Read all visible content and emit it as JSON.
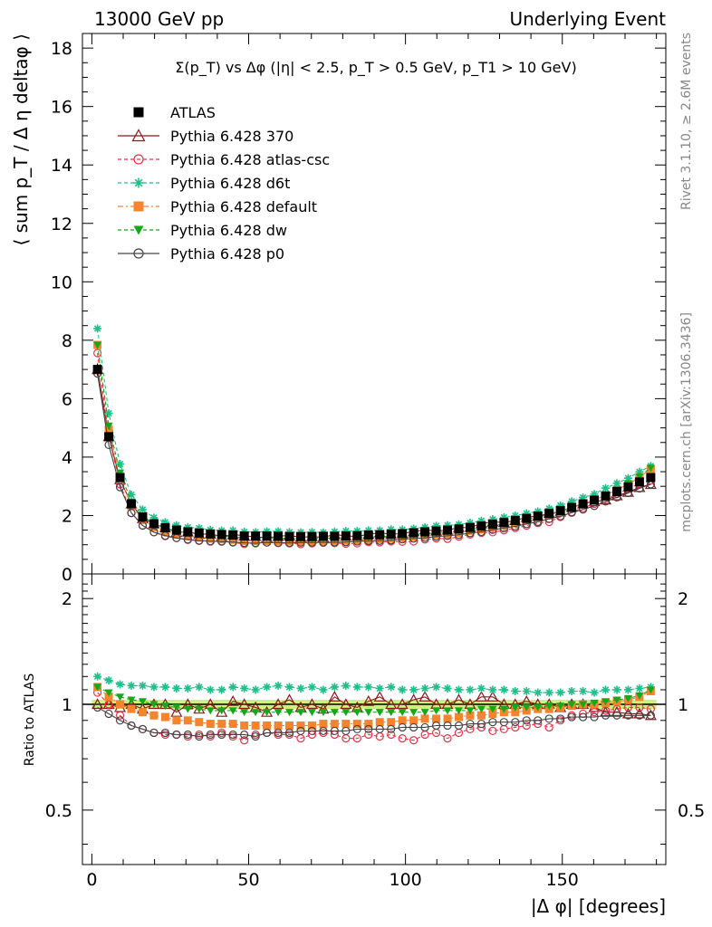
{
  "header": {
    "left": "13000 GeV pp",
    "right": "Underlying Event"
  },
  "side_labels": {
    "rivet": "Rivet 3.1.10, ≥ 2.6M events",
    "mcplots": "mcplots.cern.ch [arXiv:1306.3436]"
  },
  "chart_data": {
    "type": "scatter",
    "title": "Σ(p_T) vs Δφ (|η| < 2.5, p_T > 0.5 GeV, p_T1 > 10 GeV)",
    "xlabel": "|Δ φ| [degrees]",
    "ylabel": "⟨ sum p_T / Δ η deltaφ ⟩",
    "ratio_ylabel": "Ratio to ATLAS",
    "xlim": [
      -3,
      183
    ],
    "ylim": [
      0,
      18.5
    ],
    "ratio_ylim": [
      0.35,
      2.35
    ],
    "ratio_log": true,
    "x_ticks": [
      "0",
      "50",
      "100",
      "150"
    ],
    "y_ticks": [
      "0",
      "2",
      "4",
      "6",
      "8",
      "10",
      "12",
      "14",
      "16",
      "18"
    ],
    "ratio_ticks": [
      "0.5",
      "1",
      "2"
    ],
    "legend_position": "top-left",
    "data_points": {
      "name": "ATLAS",
      "x": [
        1.8,
        5.4,
        9,
        12.6,
        16.2,
        19.8,
        23.4,
        27,
        30.6,
        34.2,
        37.8,
        41.4,
        45,
        48.6,
        52.2,
        55.8,
        59.4,
        63,
        66.6,
        70.2,
        73.8,
        77.4,
        81,
        84.6,
        88.2,
        91.8,
        95.4,
        99,
        102.6,
        106.2,
        109.8,
        113.4,
        117,
        120.6,
        124.2,
        127.8,
        131.4,
        135,
        138.6,
        142.2,
        145.8,
        149.4,
        153,
        156.6,
        160.2,
        163.8,
        167.4,
        171,
        174.6,
        178.2
      ],
      "y": [
        7.0,
        4.7,
        3.3,
        2.4,
        1.95,
        1.72,
        1.58,
        1.5,
        1.44,
        1.4,
        1.37,
        1.35,
        1.33,
        1.3,
        1.3,
        1.3,
        1.29,
        1.28,
        1.28,
        1.28,
        1.29,
        1.29,
        1.3,
        1.31,
        1.33,
        1.34,
        1.36,
        1.38,
        1.41,
        1.44,
        1.47,
        1.5,
        1.54,
        1.59,
        1.64,
        1.7,
        1.76,
        1.83,
        1.9,
        1.98,
        2.07,
        2.17,
        2.28,
        2.4,
        2.53,
        2.67,
        2.82,
        2.98,
        3.15,
        3.3
      ]
    },
    "series": [
      {
        "name": "Pythia 6.428 370",
        "color": "#8b1a1a",
        "marker": "triangle-open",
        "line": "solid",
        "ratio": [
          1.0,
          1.0,
          0.98,
          1.0,
          0.97,
          1.0,
          1.0,
          0.95,
          1.0,
          0.97,
          1.0,
          0.95,
          1.02,
          1.0,
          0.98,
          0.95,
          1.0,
          1.03,
          0.98,
          1.0,
          0.97,
          1.05,
          1.0,
          0.98,
          1.02,
          1.05,
          1.0,
          1.0,
          1.03,
          1.05,
          1.0,
          1.0,
          1.03,
          1.0,
          1.05,
          1.05,
          1.0,
          1.0,
          1.02,
          1.0,
          1.0,
          0.98,
          1.0,
          1.0,
          0.98,
          0.95,
          0.95,
          0.94,
          0.94,
          0.93
        ]
      },
      {
        "name": "Pythia 6.428 atlas-csc",
        "color": "#e8334a",
        "marker": "circle-open",
        "line": "dashed",
        "ratio": [
          1.08,
          1.0,
          0.93,
          0.87,
          0.85,
          0.83,
          0.82,
          0.82,
          0.81,
          0.82,
          0.81,
          0.83,
          0.81,
          0.79,
          0.82,
          0.83,
          0.82,
          0.82,
          0.8,
          0.82,
          0.83,
          0.82,
          0.8,
          0.8,
          0.82,
          0.81,
          0.82,
          0.8,
          0.79,
          0.82,
          0.83,
          0.8,
          0.83,
          0.85,
          0.86,
          0.84,
          0.85,
          0.86,
          0.87,
          0.88,
          0.86,
          0.9,
          0.93,
          0.94,
          0.95,
          0.96,
          0.97,
          0.98,
          0.98,
          0.97
        ]
      },
      {
        "name": "Pythia 6.428 d6t",
        "color": "#1dbf8a",
        "marker": "star",
        "line": "dashed",
        "ratio": [
          1.2,
          1.17,
          1.14,
          1.13,
          1.13,
          1.12,
          1.12,
          1.11,
          1.11,
          1.12,
          1.1,
          1.1,
          1.12,
          1.11,
          1.1,
          1.12,
          1.13,
          1.12,
          1.11,
          1.12,
          1.1,
          1.12,
          1.13,
          1.12,
          1.12,
          1.11,
          1.12,
          1.1,
          1.1,
          1.11,
          1.12,
          1.11,
          1.1,
          1.1,
          1.11,
          1.1,
          1.1,
          1.09,
          1.09,
          1.08,
          1.08,
          1.08,
          1.09,
          1.09,
          1.08,
          1.1,
          1.1,
          1.1,
          1.11,
          1.12
        ]
      },
      {
        "name": "Pythia 6.428 default",
        "color": "#f5842c",
        "marker": "square",
        "line": "dashdot",
        "ratio": [
          1.12,
          1.05,
          1.0,
          0.97,
          0.95,
          0.93,
          0.92,
          0.9,
          0.9,
          0.89,
          0.88,
          0.88,
          0.88,
          0.87,
          0.87,
          0.87,
          0.87,
          0.87,
          0.87,
          0.87,
          0.88,
          0.88,
          0.88,
          0.88,
          0.88,
          0.89,
          0.89,
          0.9,
          0.9,
          0.91,
          0.91,
          0.91,
          0.92,
          0.93,
          0.93,
          0.94,
          0.95,
          0.95,
          0.96,
          0.97,
          0.97,
          0.98,
          0.99,
          1.0,
          1.0,
          1.01,
          1.02,
          1.03,
          1.05,
          1.09
        ]
      },
      {
        "name": "Pythia 6.428 dw",
        "color": "#16a81a",
        "marker": "triangle-down",
        "line": "dashed",
        "ratio": [
          1.12,
          1.08,
          1.05,
          1.03,
          1.02,
          1.0,
          0.99,
          0.98,
          0.97,
          0.97,
          0.96,
          0.96,
          0.96,
          0.95,
          0.95,
          0.95,
          0.95,
          0.95,
          0.95,
          0.95,
          0.95,
          0.95,
          0.95,
          0.95,
          0.95,
          0.95,
          0.95,
          0.95,
          0.95,
          0.95,
          0.96,
          0.96,
          0.96,
          0.96,
          0.97,
          0.97,
          0.97,
          0.98,
          0.98,
          0.98,
          0.99,
          0.99,
          1.0,
          1.0,
          1.01,
          1.02,
          1.03,
          1.04,
          1.06,
          1.1
        ]
      },
      {
        "name": "Pythia 6.428 p0",
        "color": "#444444",
        "marker": "circle-open",
        "line": "solid",
        "ratio": [
          0.98,
          0.94,
          0.9,
          0.87,
          0.85,
          0.83,
          0.83,
          0.82,
          0.82,
          0.81,
          0.82,
          0.82,
          0.82,
          0.82,
          0.81,
          0.83,
          0.83,
          0.83,
          0.84,
          0.84,
          0.84,
          0.84,
          0.84,
          0.85,
          0.85,
          0.85,
          0.85,
          0.86,
          0.86,
          0.86,
          0.87,
          0.87,
          0.87,
          0.88,
          0.88,
          0.89,
          0.89,
          0.89,
          0.9,
          0.9,
          0.91,
          0.91,
          0.92,
          0.92,
          0.92,
          0.93,
          0.93,
          0.93,
          0.93,
          0.93
        ]
      }
    ]
  }
}
